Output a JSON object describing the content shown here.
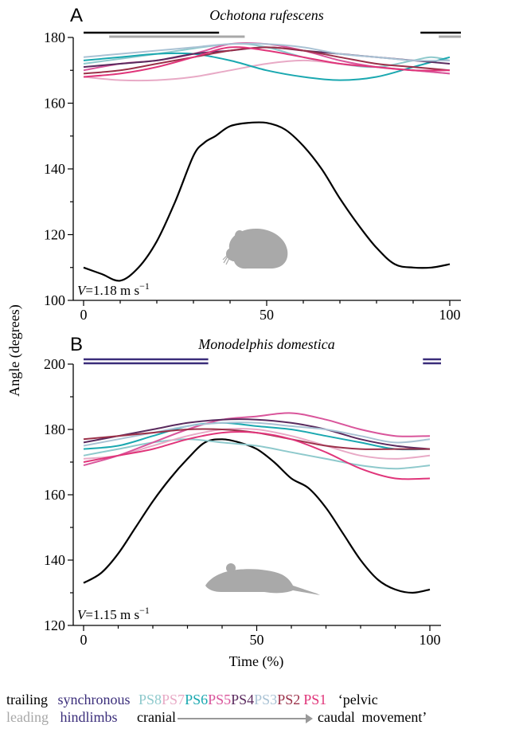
{
  "figure": {
    "ylabel": "Angle (degrees)",
    "xlabel": "Time (%)",
    "mouse_icon": "mouse-silhouette-icon",
    "opossum_icon": "opossum-silhouette-icon"
  },
  "colors": {
    "PS8": "#8ec9cc",
    "PS7": "#e8aac6",
    "PS6": "#1aa8b0",
    "PS5": "#d9559b",
    "PS4": "#5a2a5e",
    "PS3": "#a9c2d4",
    "PS2": "#9b3049",
    "PS1": "#e0357a",
    "hindlimb": "#000000",
    "trailing": "#000000",
    "leading": "#a8a8a8",
    "synchronous": "#3a2d7a",
    "silhouette": "#a9a9a9"
  },
  "legend": {
    "row1": {
      "trailing": "trailing",
      "synchronous": "synchronous",
      "ps8": "PS8",
      "ps7": "PS7",
      "ps6": "PS6",
      "ps5": "PS5",
      "ps4": "PS4",
      "ps3": "PS3",
      "ps2": "PS2",
      "ps1": "PS1",
      "pelvic": "‘pelvic"
    },
    "row2": {
      "leading": "leading",
      "hindlimbs": "hindlimbs",
      "cranial": "cranial",
      "caudal": "caudal",
      "movement": "movement’"
    }
  },
  "chart_data": [
    {
      "panel_label": "A",
      "title": "Ochotona rufescens",
      "type": "line",
      "speed_label": "V=1.18 m s",
      "speed_exp": "−1",
      "xlim": [
        0,
        100
      ],
      "ylim": [
        100,
        180
      ],
      "xticks": [
        0,
        50,
        100
      ],
      "yticks": [
        100,
        120,
        140,
        160,
        180
      ],
      "bars": [
        {
          "name": "trailing",
          "ranges": [
            [
              0,
              37
            ],
            [
              92,
              100
            ]
          ]
        },
        {
          "name": "leading",
          "ranges": [
            [
              7,
              44
            ],
            [
              97,
              100
            ]
          ]
        }
      ],
      "series": [
        {
          "key": "black",
          "x": [
            0,
            5,
            10,
            15,
            20,
            25,
            30,
            33,
            36,
            40,
            45,
            50,
            55,
            60,
            65,
            70,
            75,
            80,
            85,
            90,
            95,
            100
          ],
          "y": [
            110,
            108,
            106,
            110,
            118,
            130,
            144,
            148,
            150,
            153,
            154,
            154,
            152,
            147,
            140,
            131,
            123,
            116,
            111,
            110,
            110,
            111
          ]
        },
        {
          "key": "PS8",
          "x": [
            0,
            20,
            40,
            50,
            60,
            70,
            80,
            90,
            95,
            100
          ],
          "y": [
            172,
            175,
            178,
            177,
            174,
            172,
            171,
            173,
            174,
            173
          ]
        },
        {
          "key": "PS7",
          "x": [
            0,
            10,
            20,
            30,
            40,
            50,
            60,
            70,
            80,
            90,
            100
          ],
          "y": [
            168,
            167,
            167,
            168,
            170,
            172,
            173,
            172,
            171,
            170,
            169
          ]
        },
        {
          "key": "PS6",
          "x": [
            0,
            10,
            20,
            30,
            40,
            50,
            60,
            70,
            80,
            90,
            100
          ],
          "y": [
            173,
            174,
            175,
            175,
            173,
            170,
            168,
            167,
            168,
            171,
            174
          ]
        },
        {
          "key": "PS5",
          "x": [
            0,
            10,
            20,
            30,
            40,
            50,
            60,
            70,
            80,
            90,
            100
          ],
          "y": [
            170,
            172,
            173,
            175,
            178,
            178,
            176,
            173,
            171,
            170,
            169
          ]
        },
        {
          "key": "PS4",
          "x": [
            0,
            10,
            20,
            30,
            40,
            50,
            60,
            70,
            80,
            90,
            100
          ],
          "y": [
            171,
            172,
            173,
            175,
            176,
            177,
            176,
            175,
            174,
            173,
            172
          ]
        },
        {
          "key": "PS3",
          "x": [
            0,
            10,
            20,
            30,
            40,
            50,
            60,
            70,
            80,
            90,
            100
          ],
          "y": [
            174,
            175,
            176,
            177,
            178,
            178,
            177,
            175,
            174,
            173,
            173
          ]
        },
        {
          "key": "PS2",
          "x": [
            0,
            10,
            20,
            30,
            40,
            50,
            60,
            70,
            80,
            90,
            100
          ],
          "y": [
            169,
            170,
            172,
            174,
            176,
            177,
            176,
            174,
            172,
            171,
            170
          ]
        },
        {
          "key": "PS1",
          "x": [
            0,
            10,
            20,
            30,
            40,
            50,
            60,
            70,
            80,
            90,
            100
          ],
          "y": [
            168,
            169,
            171,
            174,
            177,
            176,
            174,
            172,
            171,
            170,
            170
          ]
        }
      ]
    },
    {
      "panel_label": "B",
      "title": "Monodelphis domestica",
      "type": "line",
      "speed_label": "V=1.15 m s",
      "speed_exp": "−1",
      "xlim": [
        0,
        100
      ],
      "ylim": [
        120,
        200
      ],
      "xticks": [
        0,
        50,
        100
      ],
      "yticks": [
        120,
        140,
        160,
        180,
        200
      ],
      "bars": [
        {
          "name": "synchronous",
          "ranges": [
            [
              0,
              36
            ],
            [
              100,
              100
            ]
          ]
        }
      ],
      "series": [
        {
          "key": "black",
          "x": [
            0,
            5,
            10,
            15,
            20,
            25,
            30,
            35,
            40,
            45,
            50,
            55,
            60,
            65,
            70,
            75,
            80,
            85,
            90,
            95,
            100
          ],
          "y": [
            133,
            136,
            142,
            150,
            158,
            165,
            171,
            176,
            177,
            176,
            174,
            170,
            165,
            162,
            156,
            148,
            140,
            134,
            131,
            130,
            131
          ]
        },
        {
          "key": "PS8",
          "x": [
            0,
            10,
            20,
            30,
            40,
            50,
            60,
            70,
            80,
            90,
            100
          ],
          "y": [
            172,
            174,
            176,
            177,
            176,
            175,
            173,
            171,
            169,
            168,
            169
          ]
        },
        {
          "key": "PS7",
          "x": [
            0,
            10,
            20,
            30,
            40,
            50,
            60,
            70,
            80,
            90,
            100
          ],
          "y": [
            171,
            172,
            175,
            178,
            180,
            180,
            178,
            175,
            172,
            171,
            172
          ]
        },
        {
          "key": "PS6",
          "x": [
            0,
            10,
            20,
            30,
            40,
            50,
            60,
            70,
            80,
            90,
            100
          ],
          "y": [
            174,
            175,
            178,
            181,
            182,
            181,
            180,
            178,
            176,
            174,
            174
          ]
        },
        {
          "key": "PS5",
          "x": [
            0,
            10,
            20,
            30,
            40,
            50,
            60,
            70,
            80,
            90,
            100
          ],
          "y": [
            169,
            172,
            176,
            180,
            183,
            184,
            185,
            183,
            180,
            178,
            178
          ]
        },
        {
          "key": "PS4",
          "x": [
            0,
            10,
            20,
            30,
            40,
            50,
            60,
            70,
            80,
            90,
            100
          ],
          "y": [
            176,
            178,
            180,
            182,
            183,
            183,
            182,
            180,
            177,
            175,
            174
          ]
        },
        {
          "key": "PS3",
          "x": [
            0,
            10,
            20,
            30,
            40,
            50,
            60,
            70,
            80,
            90,
            100
          ],
          "y": [
            175,
            177,
            179,
            181,
            182,
            182,
            181,
            180,
            178,
            176,
            177
          ]
        },
        {
          "key": "PS2",
          "x": [
            0,
            10,
            20,
            30,
            40,
            50,
            60,
            70,
            80,
            90,
            100
          ],
          "y": [
            177,
            178,
            179,
            180,
            180,
            179,
            177,
            175,
            174,
            174,
            174
          ]
        },
        {
          "key": "PS1",
          "x": [
            0,
            10,
            20,
            30,
            40,
            50,
            60,
            70,
            80,
            90,
            100
          ],
          "y": [
            170,
            172,
            174,
            177,
            179,
            179,
            177,
            173,
            168,
            165,
            165
          ]
        }
      ]
    }
  ]
}
